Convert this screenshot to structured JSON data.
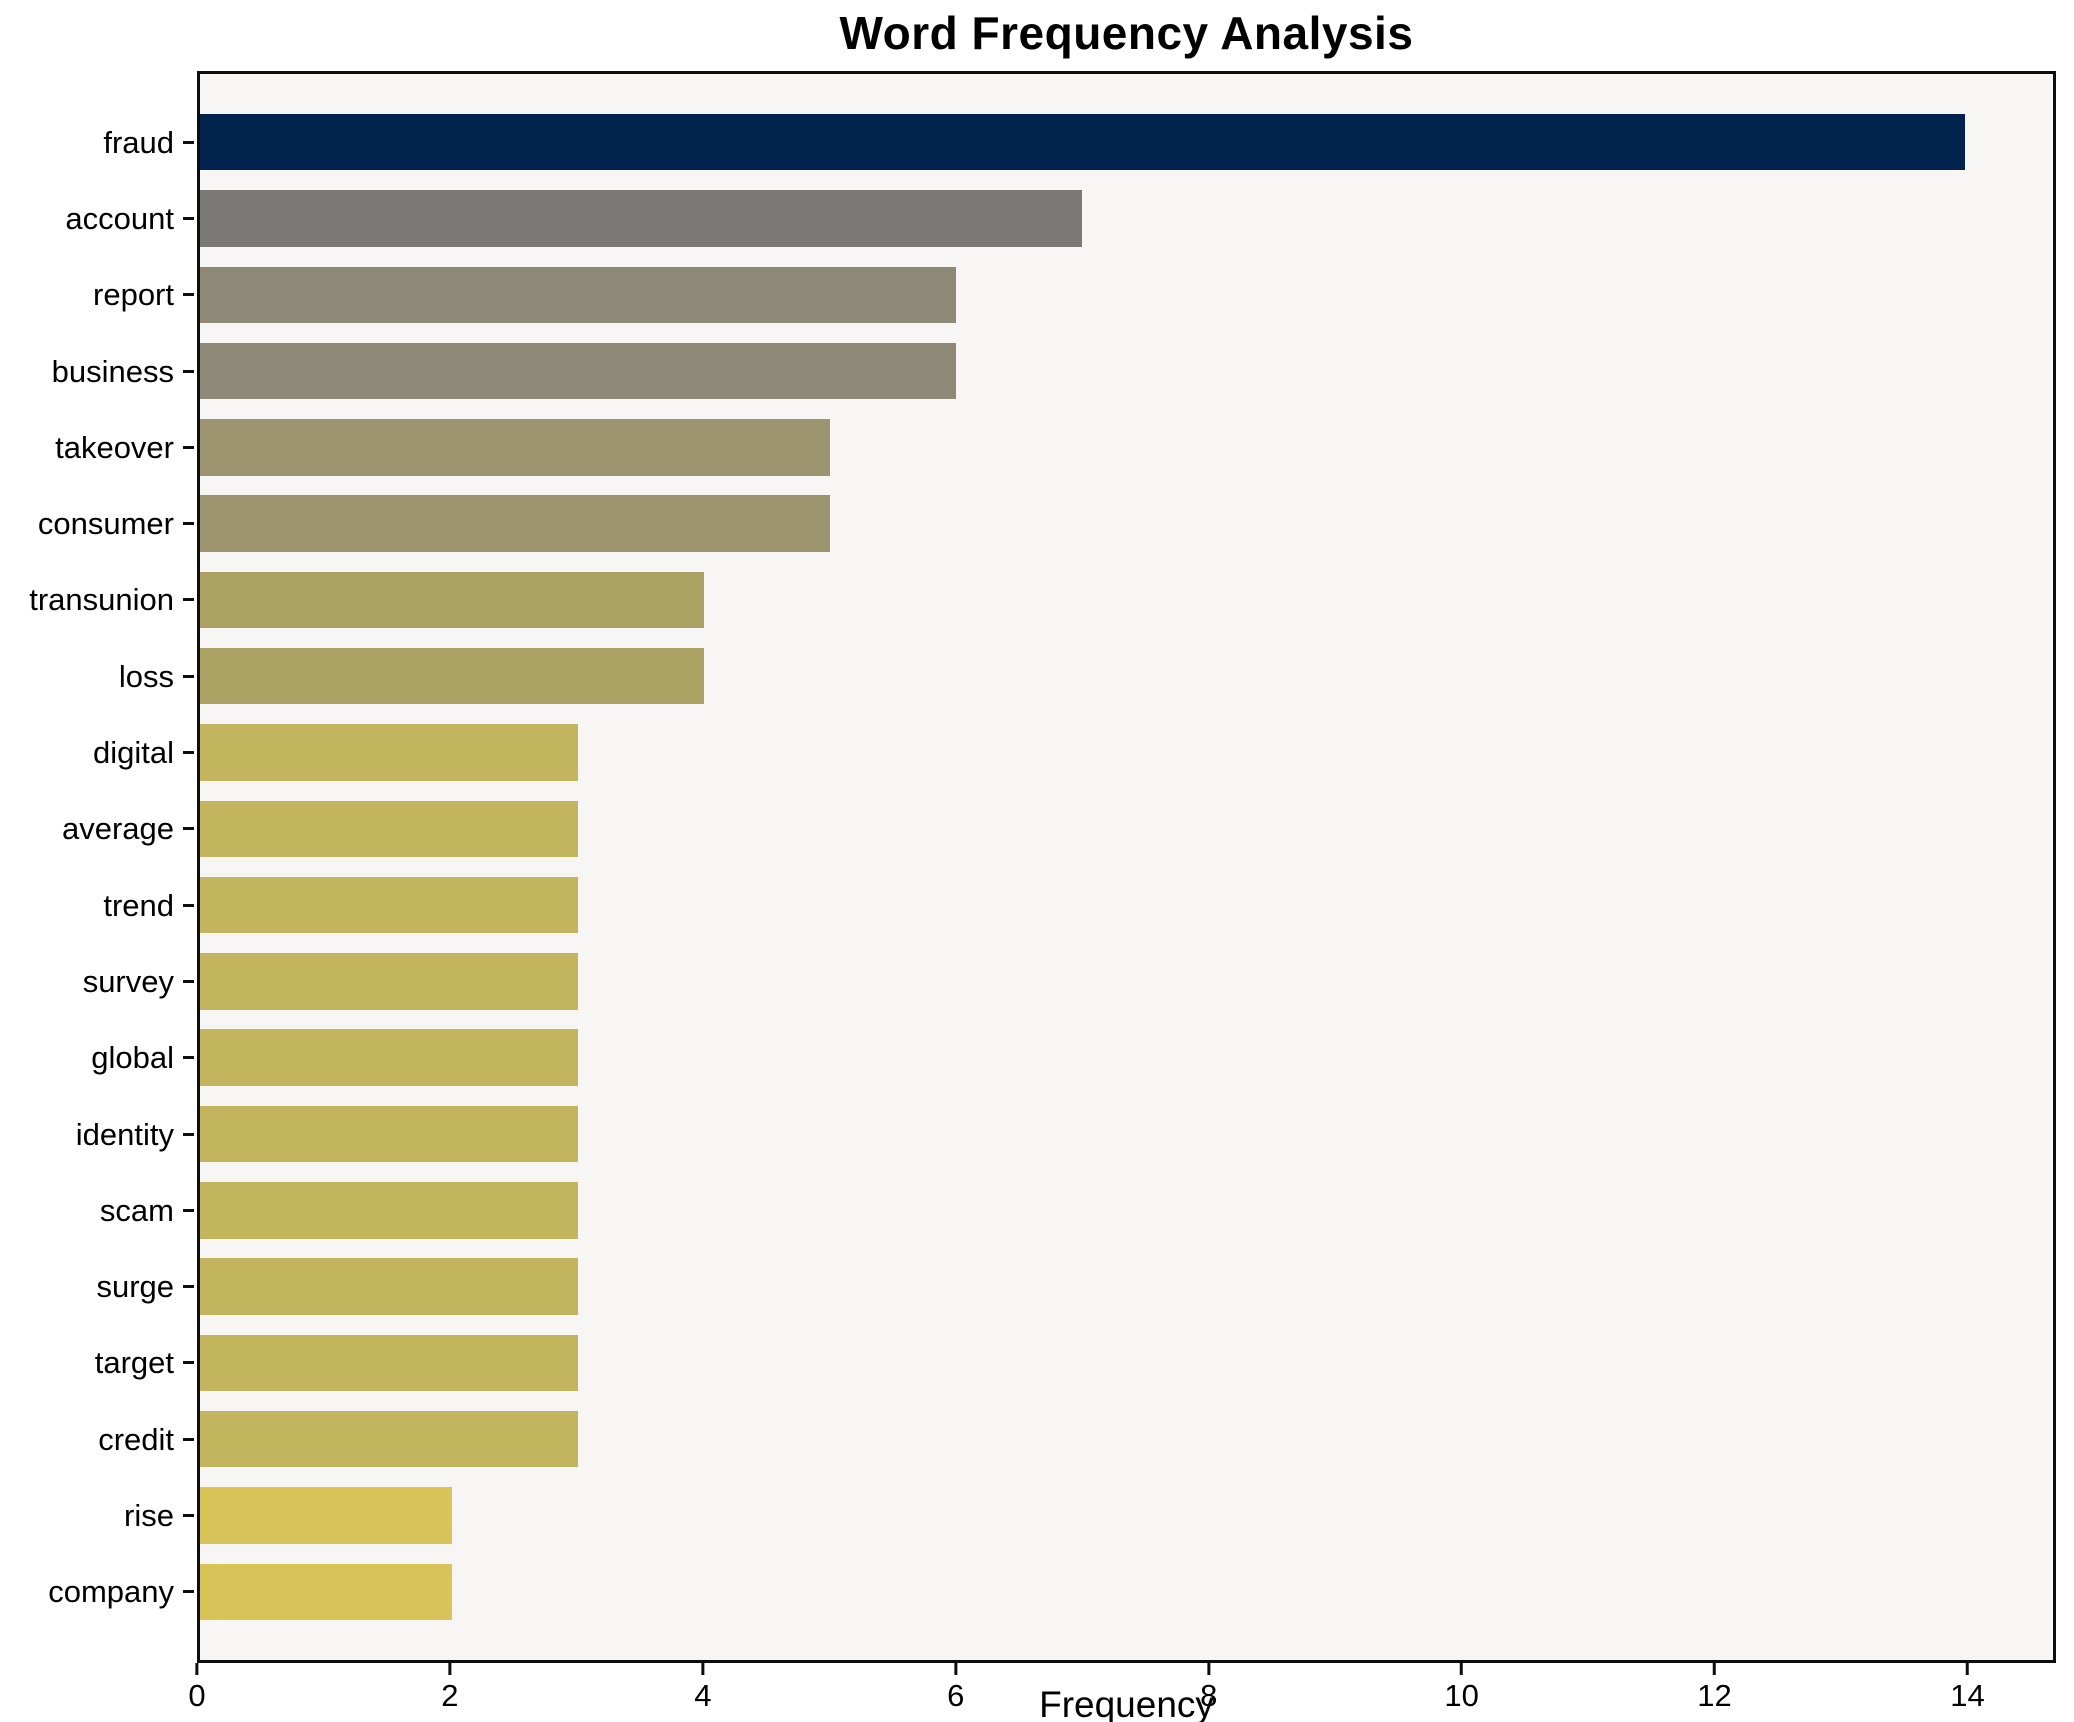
{
  "figure": {
    "title": "Word Frequency Analysis",
    "xlabel": "Frequency"
  },
  "chart_data": {
    "type": "bar",
    "orientation": "horizontal",
    "title": "Word Frequency Analysis",
    "xlabel": "Frequency",
    "ylabel": "",
    "categories": [
      "fraud",
      "account",
      "report",
      "business",
      "takeover",
      "consumer",
      "transunion",
      "loss",
      "digital",
      "average",
      "trend",
      "survey",
      "global",
      "identity",
      "scam",
      "surge",
      "target",
      "credit",
      "rise",
      "company"
    ],
    "values": [
      14,
      7,
      6,
      6,
      5,
      5,
      4,
      4,
      3,
      3,
      3,
      3,
      3,
      3,
      3,
      3,
      3,
      3,
      2,
      2
    ],
    "bar_colors": [
      "#02234e",
      "#7a7975",
      "#8e8876",
      "#8e8876",
      "#9d9470",
      "#9d9470",
      "#aca263",
      "#aca263",
      "#c3b45e",
      "#c3b45e",
      "#c3b45e",
      "#c3b45e",
      "#c3b45e",
      "#c3b45e",
      "#c3b45e",
      "#c3b45e",
      "#c3b45e",
      "#c3b45e",
      "#d9c45a",
      "#d9c45a"
    ],
    "xticks": [
      0,
      2,
      4,
      6,
      8,
      10,
      12,
      14
    ],
    "xlim": [
      0,
      14.7
    ],
    "grid": false,
    "legend": null,
    "colors": {
      "plot_bg": "#f7f6f4",
      "fig_bg": "#ffffff",
      "spine": "#0d0d0d",
      "text": "#000000"
    }
  }
}
